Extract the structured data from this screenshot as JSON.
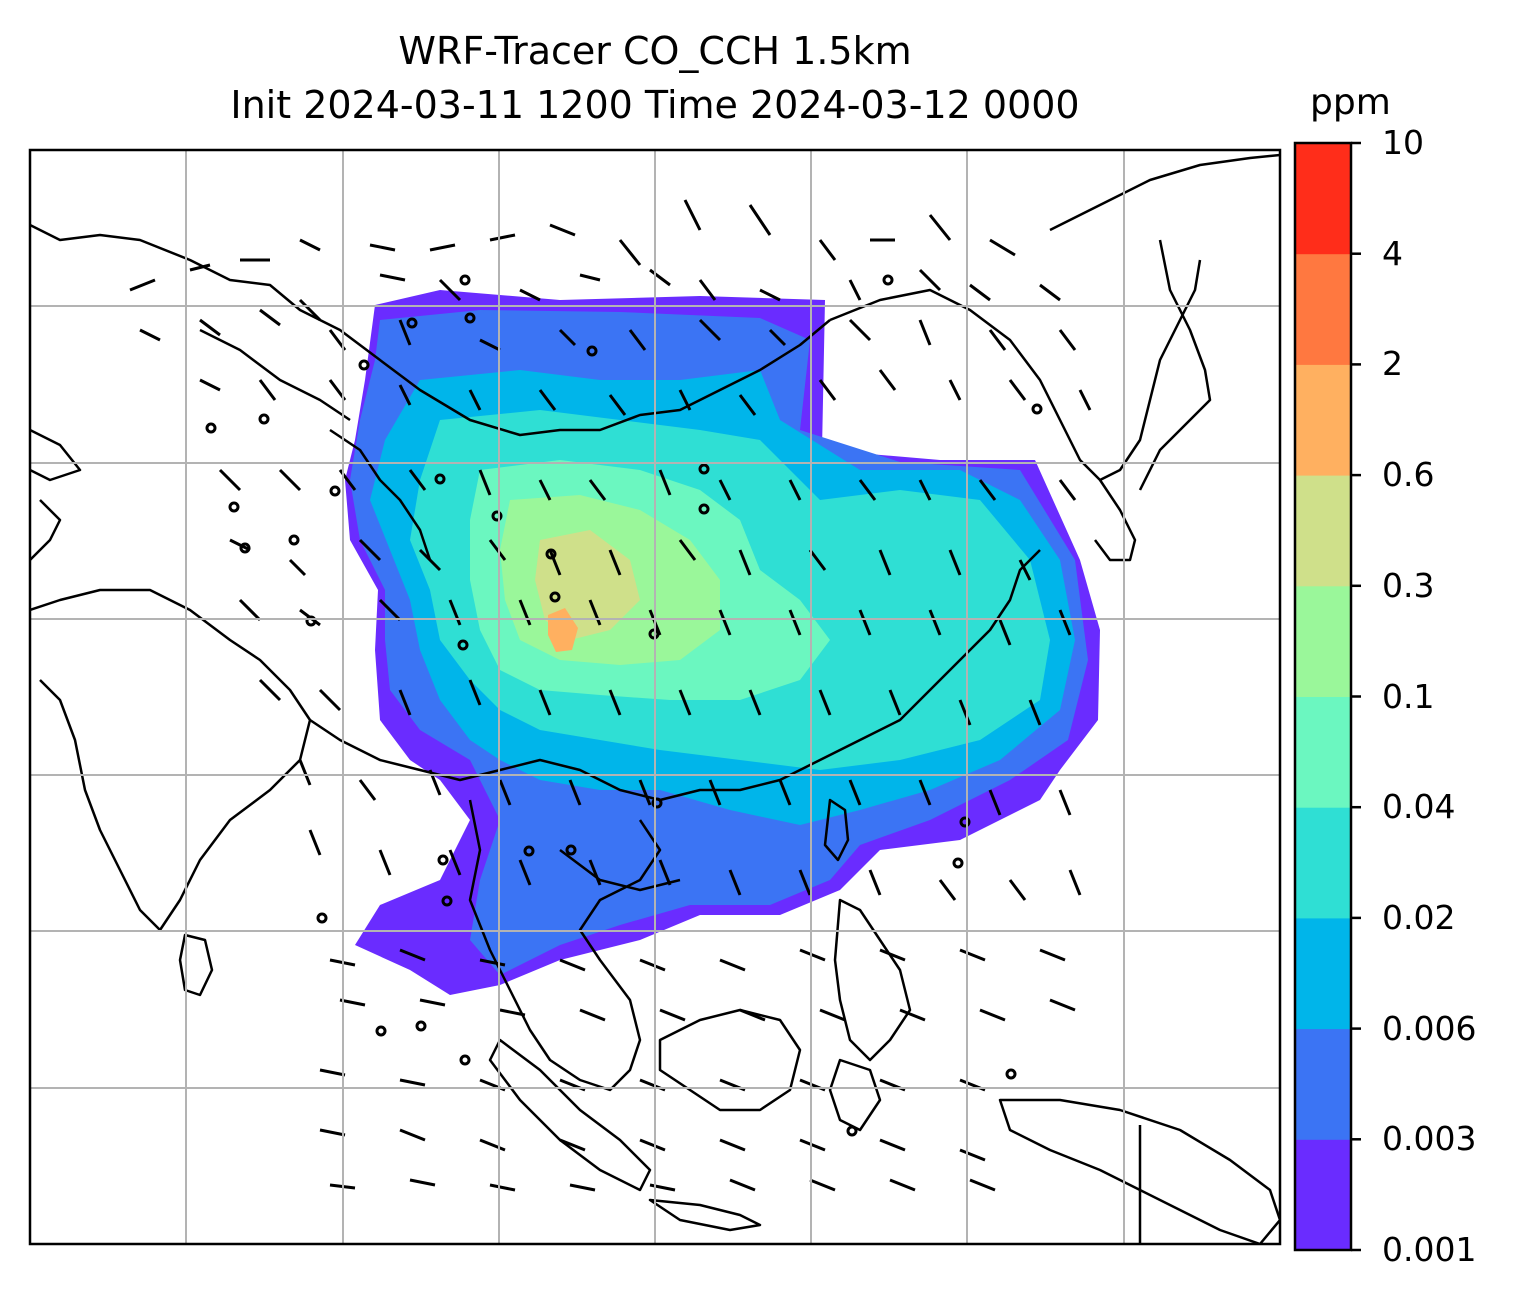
{
  "title": {
    "line1": "WRF-Tracer CO_CCH 1.5km",
    "line2": "Init 2024-03-11 1200 Time 2024-03-12 0000"
  },
  "colorbar": {
    "unit": "ppm",
    "levels": [
      "0.001",
      "0.003",
      "0.006",
      "0.02",
      "0.04",
      "0.1",
      "0.3",
      "0.6",
      "2",
      "4",
      "10"
    ],
    "colors": [
      "#6a2cff",
      "#3b74f4",
      "#00b5ea",
      "#2fdfd4",
      "#6bf7c0",
      "#9af79a",
      "#cfe08a",
      "#ffb060",
      "#ff7840",
      "#ff2d1a"
    ]
  },
  "map": {
    "gridlines": true,
    "coastline_color": "#000000",
    "grid_color": "#b3b3b3",
    "wind_barbs": true
  }
}
